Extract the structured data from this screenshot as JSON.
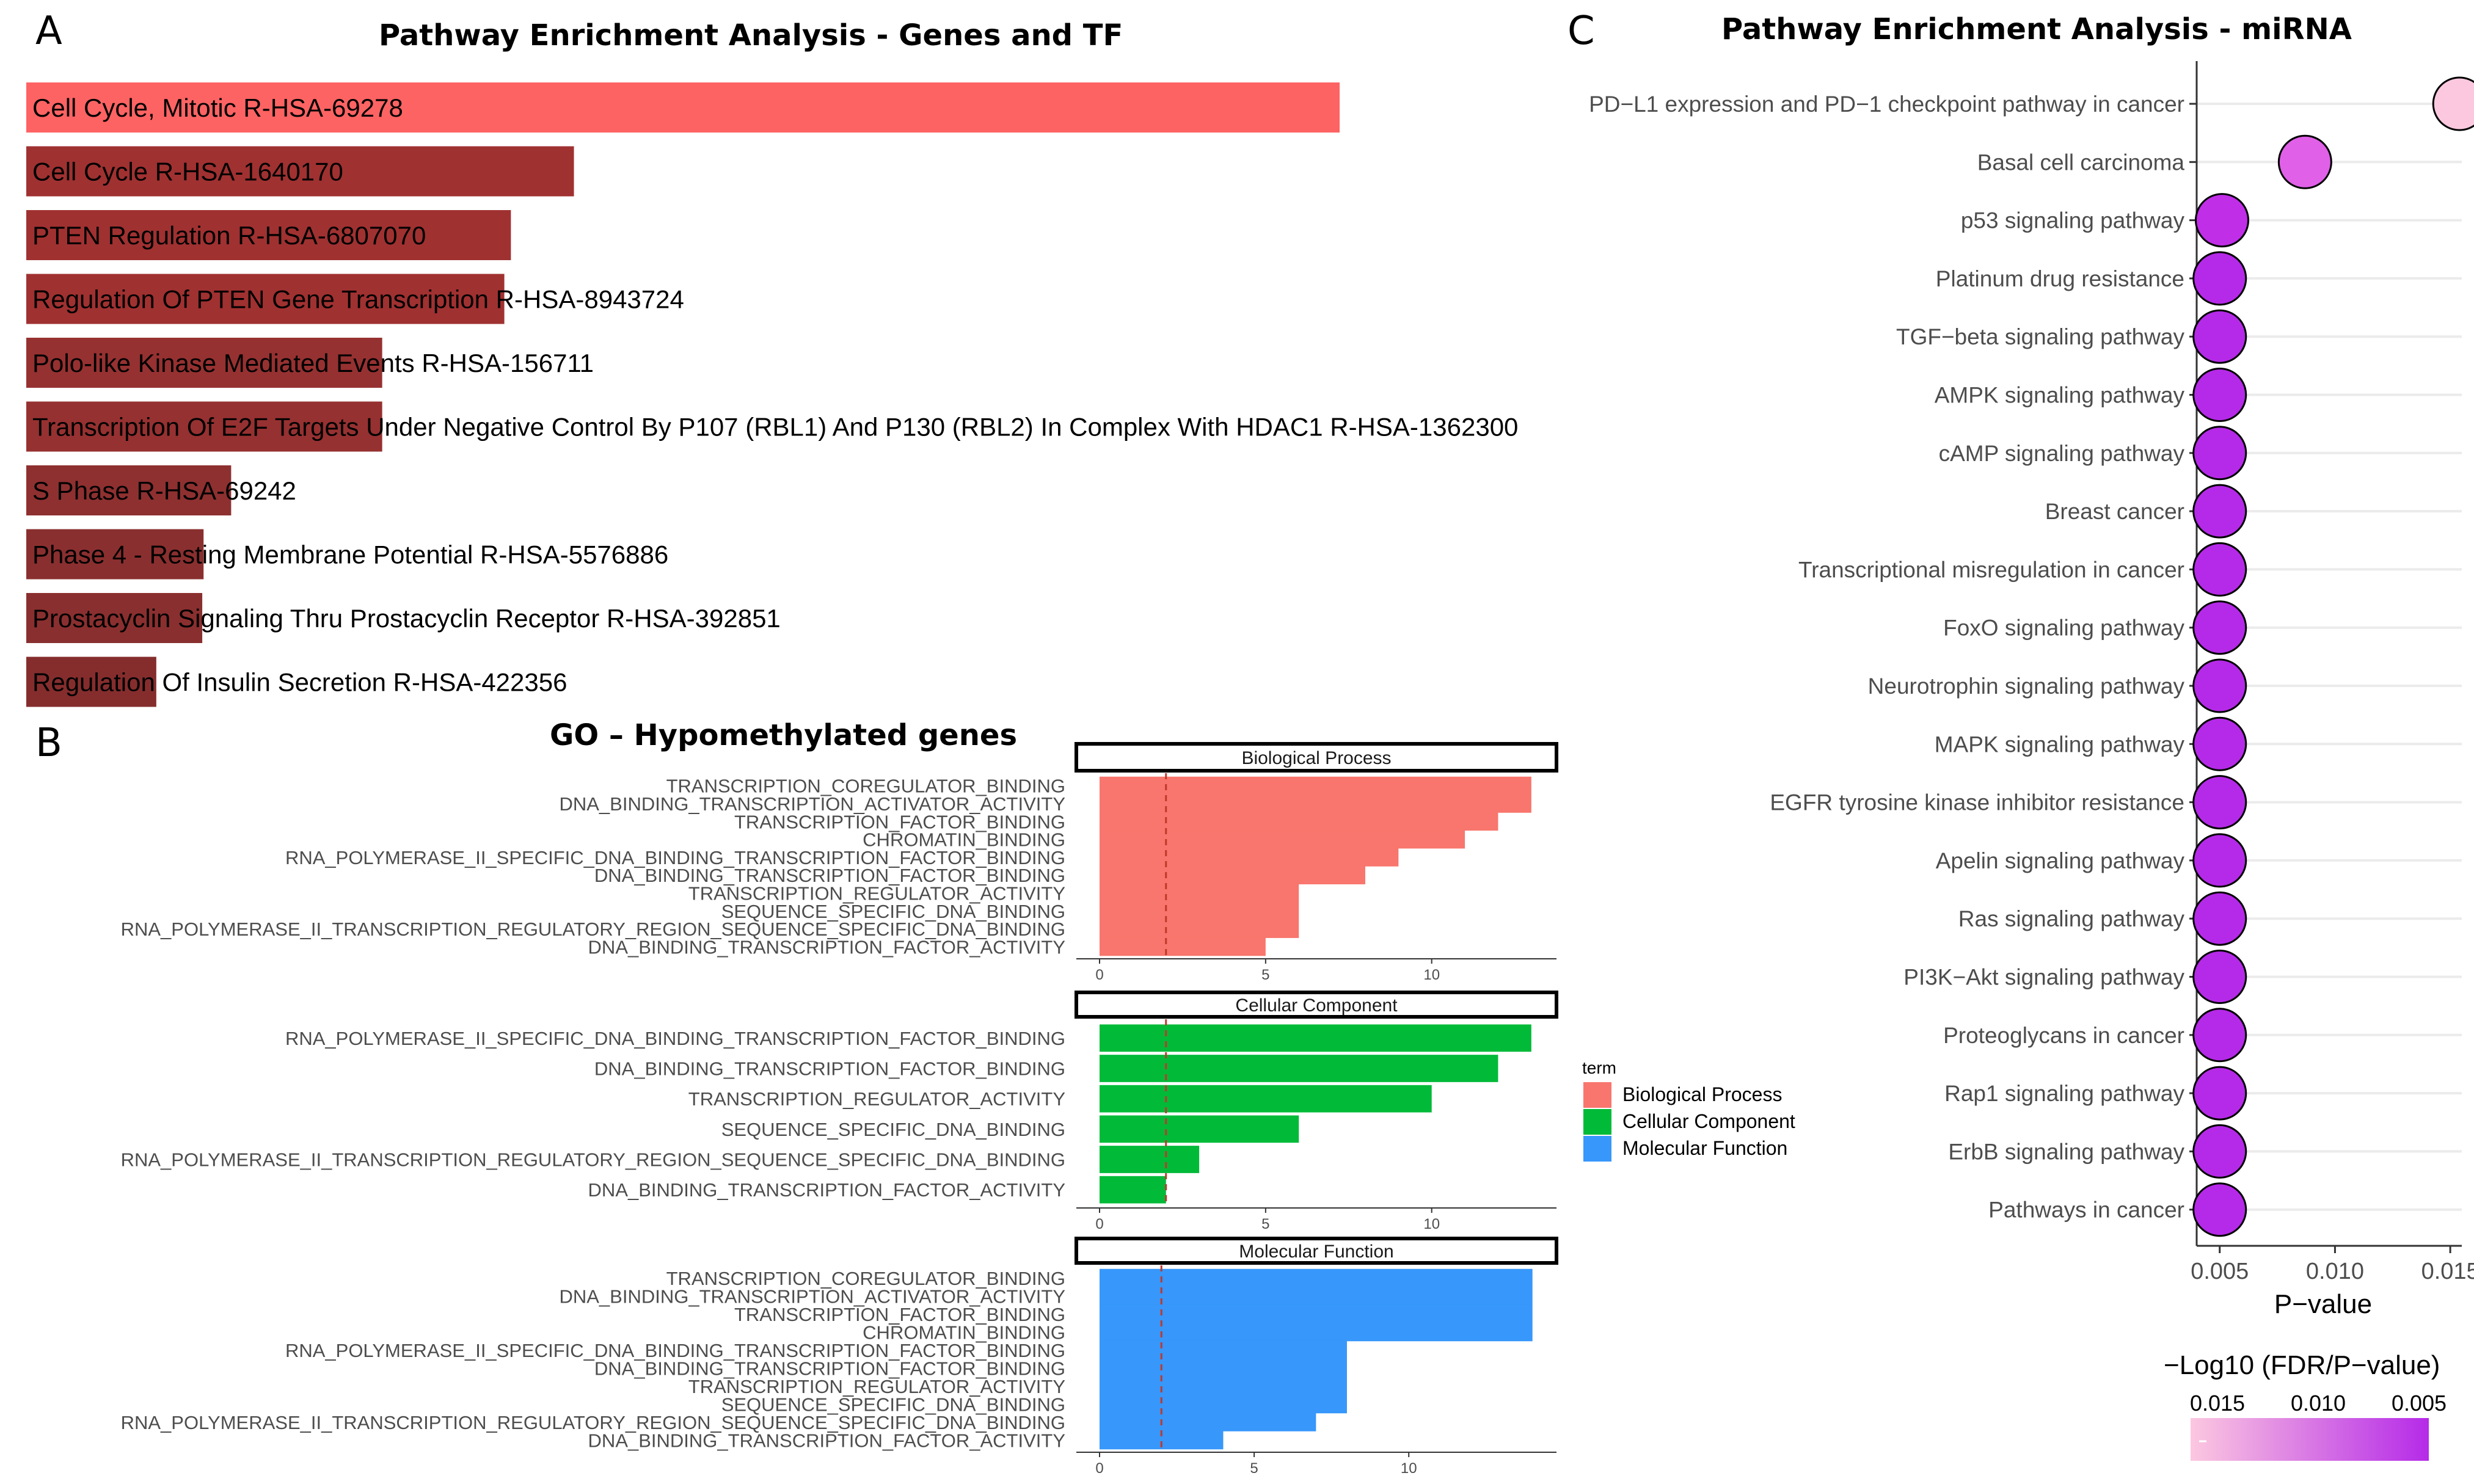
{
  "panels": {
    "a": {
      "letter": "A",
      "title": "Pathway Enrichment Analysis - Genes and TF"
    },
    "b": {
      "letter": "B",
      "title": "GO – Hypomethylated genes"
    },
    "c": {
      "letter": "C",
      "title": "Pathway Enrichment Analysis - miRNA"
    }
  },
  "chart_data": [
    {
      "id": "A",
      "type": "bar",
      "orientation": "horizontal",
      "title": "Pathway Enrichment Analysis - Genes and TF",
      "categories": [
        "Cell Cycle, Mitotic R-HSA-69278",
        "Cell Cycle R-HSA-1640170",
        "PTEN Regulation R-HSA-6807070",
        "Regulation Of PTEN Gene Transcription R-HSA-8943724",
        "Polo-like Kinase Mediated Events R-HSA-156711",
        "Transcription Of E2F Targets Under Negative Control By P107 (RBL1) And P130 (RBL2) In Complex With HDAC1 R-HSA-1362300",
        "S Phase R-HSA-69242",
        "Phase 4 - Resting Membrane Potential R-HSA-5576886",
        "Prostacyclin Signaling Thru Prostacyclin Receptor R-HSA-392851",
        "Regulation Of Insulin Secretion R-HSA-422356"
      ],
      "values": [
        100,
        41.7,
        36.9,
        36.4,
        27.1,
        27.1,
        15.6,
        13.5,
        13.4,
        9.9
      ],
      "colors": [
        "#fe6363",
        "#a03131",
        "#a03131",
        "#a03131",
        "#963131",
        "#963131",
        "#8e3030",
        "#8a2f2f",
        "#8a2f2f",
        "#852d2d"
      ],
      "xlabel": "",
      "ylabel": ""
    },
    {
      "id": "B",
      "type": "bar",
      "orientation": "horizontal",
      "title": "GO – Hypomethylated genes",
      "threshold": 2,
      "legend": {
        "title": "term",
        "placement": "right",
        "entries": [
          {
            "label": "Biological Process",
            "color": "#f8766d"
          },
          {
            "label": "Cellular Component",
            "color": "#00ba38"
          },
          {
            "label": "Molecular Function",
            "color": "#3797fb"
          }
        ]
      },
      "facets": [
        {
          "name": "Biological Process",
          "color": "#f8766d",
          "xlim": [
            0,
            13.5
          ],
          "ticks": [
            0,
            5,
            10
          ],
          "categories": [
            "TRANSCRIPTION_COREGULATOR_BINDING",
            "DNA_BINDING_TRANSCRIPTION_ACTIVATOR_ACTIVITY",
            "TRANSCRIPTION_FACTOR_BINDING",
            "CHROMATIN_BINDING",
            "RNA_POLYMERASE_II_SPECIFIC_DNA_BINDING_TRANSCRIPTION_FACTOR_BINDING",
            "DNA_BINDING_TRANSCRIPTION_FACTOR_BINDING",
            "TRANSCRIPTION_REGULATOR_ACTIVITY",
            "SEQUENCE_SPECIFIC_DNA_BINDING",
            "RNA_POLYMERASE_II_TRANSCRIPTION_REGULATORY_REGION_SEQUENCE_SPECIFIC_DNA_BINDING",
            "DNA_BINDING_TRANSCRIPTION_FACTOR_ACTIVITY"
          ],
          "values": [
            13,
            13,
            12,
            11,
            9,
            8,
            6,
            6,
            6,
            5
          ]
        },
        {
          "name": "Cellular Component",
          "color": "#00ba38",
          "xlim": [
            0,
            13.5
          ],
          "ticks": [
            0,
            5,
            10
          ],
          "categories": [
            "RNA_POLYMERASE_II_SPECIFIC_DNA_BINDING_TRANSCRIPTION_FACTOR_BINDING",
            "DNA_BINDING_TRANSCRIPTION_FACTOR_BINDING",
            "TRANSCRIPTION_REGULATOR_ACTIVITY",
            "SEQUENCE_SPECIFIC_DNA_BINDING",
            "RNA_POLYMERASE_II_TRANSCRIPTION_REGULATORY_REGION_SEQUENCE_SPECIFIC_DNA_BINDING",
            "DNA_BINDING_TRANSCRIPTION_FACTOR_ACTIVITY"
          ],
          "values": [
            13,
            12,
            10,
            6,
            3,
            2
          ]
        },
        {
          "name": "Molecular Function",
          "color": "#3797fb",
          "xlim": [
            0,
            14.5
          ],
          "ticks": [
            0,
            5,
            10
          ],
          "categories": [
            "TRANSCRIPTION_COREGULATOR_BINDING",
            "DNA_BINDING_TRANSCRIPTION_ACTIVATOR_ACTIVITY",
            "TRANSCRIPTION_FACTOR_BINDING",
            "CHROMATIN_BINDING",
            "RNA_POLYMERASE_II_SPECIFIC_DNA_BINDING_TRANSCRIPTION_FACTOR_BINDING",
            "DNA_BINDING_TRANSCRIPTION_FACTOR_BINDING",
            "TRANSCRIPTION_REGULATOR_ACTIVITY",
            "SEQUENCE_SPECIFIC_DNA_BINDING",
            "RNA_POLYMERASE_II_TRANSCRIPTION_REGULATORY_REGION_SEQUENCE_SPECIFIC_DNA_BINDING",
            "DNA_BINDING_TRANSCRIPTION_FACTOR_ACTIVITY"
          ],
          "values": [
            14,
            14,
            14,
            14,
            8,
            8,
            8,
            8,
            7,
            4
          ]
        }
      ]
    },
    {
      "id": "C",
      "type": "scatter",
      "subtype": "dot",
      "title": "Pathway Enrichment Analysis - miRNA",
      "xlabel": "P−value",
      "xlim": [
        0.004,
        0.0155
      ],
      "xticks": [
        0.005,
        0.01,
        0.015
      ],
      "xtick_labels": [
        "0.005",
        "0.010",
        "0.015"
      ],
      "categories": [
        "PD−L1 expression and PD−1 checkpoint pathway in cancer",
        "Basal cell carcinoma",
        "p53 signaling pathway",
        "Platinum drug resistance",
        "TGF−beta signaling pathway",
        "AMPK signaling pathway",
        "cAMP signaling pathway",
        "Breast cancer",
        "Transcriptional misregulation in cancer",
        "FoxO signaling pathway",
        "Neurotrophin signaling pathway",
        "MAPK signaling pathway",
        "EGFR tyrosine kinase inhibitor resistance",
        "Apelin signaling pathway",
        "Ras signaling pathway",
        "PI3K−Akt signaling pathway",
        "Proteoglycans in cancer",
        "Rap1 signaling pathway",
        "ErbB signaling pathway",
        "Pathways in cancer"
      ],
      "values": [
        0.0154,
        0.0087,
        0.0051,
        0.005,
        0.005,
        0.005,
        0.005,
        0.005,
        0.005,
        0.005,
        0.005,
        0.005,
        0.005,
        0.005,
        0.005,
        0.005,
        0.005,
        0.005,
        0.005,
        0.005
      ],
      "colors": [
        "#fcc8e0",
        "#e060e8",
        "#c02ee8",
        "#b52ae8",
        "#b52ae8",
        "#b52ae8",
        "#b52ae8",
        "#b52ae8",
        "#b52ae8",
        "#b52ae8",
        "#b52ae8",
        "#b52ae8",
        "#b52ae8",
        "#b52ae8",
        "#b52ae8",
        "#b52ae8",
        "#b52ae8",
        "#b52ae8",
        "#b52ae8",
        "#b52ae8"
      ],
      "colorbar": {
        "title": "−Log10 (FDR/P−value)",
        "tick_labels": [
          "0.015",
          "0.010",
          "0.005"
        ],
        "low_color": "#fcc8e0",
        "high_color": "#b52ae8"
      }
    }
  ]
}
